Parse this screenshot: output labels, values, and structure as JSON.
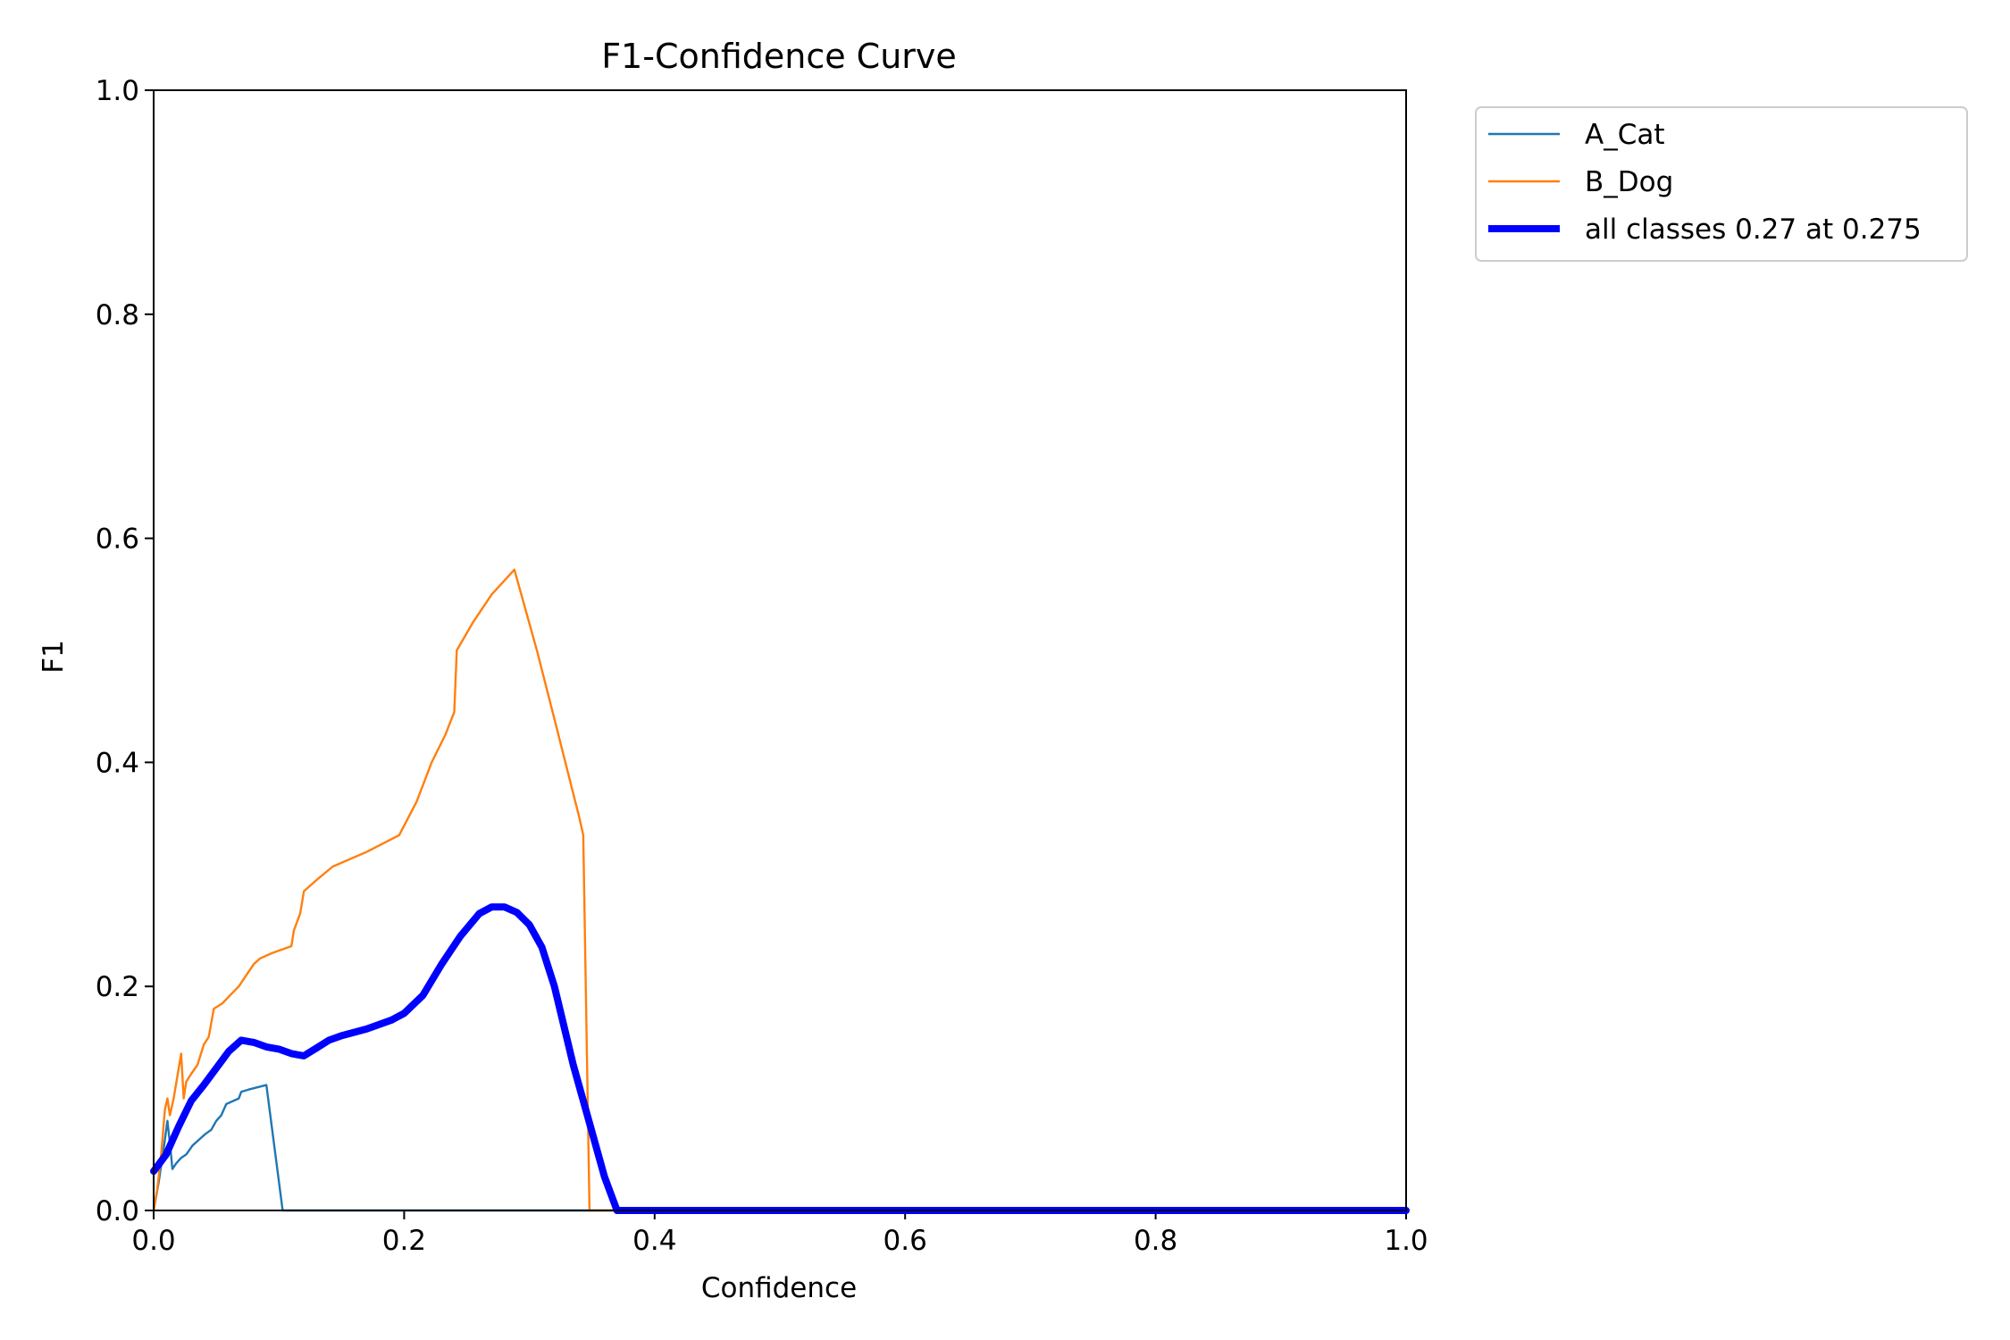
{
  "chart_data": {
    "type": "line",
    "title": "F1-Confidence Curve",
    "xlabel": "Confidence",
    "ylabel": "F1",
    "xlim": [
      0.0,
      1.0
    ],
    "ylim": [
      0.0,
      1.0
    ],
    "xticks": [
      "0.0",
      "0.2",
      "0.4",
      "0.6",
      "0.8",
      "1.0"
    ],
    "yticks": [
      "0.0",
      "0.2",
      "0.4",
      "0.6",
      "0.8",
      "1.0"
    ],
    "grid": false,
    "legend_position": "outside top-right",
    "series": [
      {
        "name": "A_Cat",
        "color": "#1f77b4",
        "style": "thin",
        "points": [
          [
            0.0,
            0.0
          ],
          [
            0.004,
            0.025
          ],
          [
            0.008,
            0.055
          ],
          [
            0.011,
            0.08
          ],
          [
            0.013,
            0.06
          ],
          [
            0.015,
            0.037
          ],
          [
            0.018,
            0.042
          ],
          [
            0.022,
            0.047
          ],
          [
            0.026,
            0.05
          ],
          [
            0.031,
            0.058
          ],
          [
            0.036,
            0.063
          ],
          [
            0.041,
            0.068
          ],
          [
            0.046,
            0.072
          ],
          [
            0.05,
            0.08
          ],
          [
            0.054,
            0.085
          ],
          [
            0.058,
            0.095
          ],
          [
            0.064,
            0.098
          ],
          [
            0.068,
            0.1
          ],
          [
            0.07,
            0.106
          ],
          [
            0.076,
            0.108
          ],
          [
            0.083,
            0.11
          ],
          [
            0.09,
            0.112
          ],
          [
            0.103,
            0.0
          ],
          [
            0.37,
            0.0
          ],
          [
            1.0,
            0.0
          ]
        ]
      },
      {
        "name": "B_Dog",
        "color": "#ff7f0e",
        "style": "thin",
        "points": [
          [
            0.0,
            0.0
          ],
          [
            0.003,
            0.02
          ],
          [
            0.006,
            0.05
          ],
          [
            0.009,
            0.09
          ],
          [
            0.011,
            0.1
          ],
          [
            0.013,
            0.085
          ],
          [
            0.016,
            0.1
          ],
          [
            0.019,
            0.12
          ],
          [
            0.022,
            0.14
          ],
          [
            0.024,
            0.1
          ],
          [
            0.026,
            0.115
          ],
          [
            0.03,
            0.122
          ],
          [
            0.035,
            0.13
          ],
          [
            0.04,
            0.148
          ],
          [
            0.044,
            0.155
          ],
          [
            0.048,
            0.18
          ],
          [
            0.055,
            0.185
          ],
          [
            0.061,
            0.192
          ],
          [
            0.068,
            0.2
          ],
          [
            0.074,
            0.21
          ],
          [
            0.08,
            0.22
          ],
          [
            0.085,
            0.225
          ],
          [
            0.095,
            0.23
          ],
          [
            0.11,
            0.236
          ],
          [
            0.112,
            0.25
          ],
          [
            0.117,
            0.265
          ],
          [
            0.12,
            0.285
          ],
          [
            0.13,
            0.295
          ],
          [
            0.143,
            0.307
          ],
          [
            0.17,
            0.32
          ],
          [
            0.196,
            0.335
          ],
          [
            0.21,
            0.365
          ],
          [
            0.222,
            0.4
          ],
          [
            0.233,
            0.425
          ],
          [
            0.24,
            0.445
          ],
          [
            0.242,
            0.5
          ],
          [
            0.255,
            0.525
          ],
          [
            0.27,
            0.55
          ],
          [
            0.288,
            0.572
          ],
          [
            0.306,
            0.5
          ],
          [
            0.322,
            0.43
          ],
          [
            0.34,
            0.35
          ],
          [
            0.343,
            0.335
          ],
          [
            0.348,
            0.0
          ],
          [
            0.37,
            0.0
          ],
          [
            1.0,
            0.0
          ]
        ]
      },
      {
        "name": "all classes 0.27 at 0.275",
        "color": "#0000ff",
        "style": "thick",
        "points": [
          [
            0.0,
            0.035
          ],
          [
            0.01,
            0.05
          ],
          [
            0.02,
            0.075
          ],
          [
            0.03,
            0.098
          ],
          [
            0.04,
            0.112
          ],
          [
            0.05,
            0.127
          ],
          [
            0.06,
            0.142
          ],
          [
            0.07,
            0.152
          ],
          [
            0.08,
            0.15
          ],
          [
            0.09,
            0.146
          ],
          [
            0.1,
            0.144
          ],
          [
            0.11,
            0.14
          ],
          [
            0.12,
            0.138
          ],
          [
            0.13,
            0.145
          ],
          [
            0.14,
            0.152
          ],
          [
            0.15,
            0.156
          ],
          [
            0.17,
            0.162
          ],
          [
            0.19,
            0.17
          ],
          [
            0.2,
            0.176
          ],
          [
            0.215,
            0.192
          ],
          [
            0.23,
            0.22
          ],
          [
            0.245,
            0.245
          ],
          [
            0.26,
            0.265
          ],
          [
            0.27,
            0.271
          ],
          [
            0.275,
            0.271
          ],
          [
            0.28,
            0.271
          ],
          [
            0.29,
            0.266
          ],
          [
            0.3,
            0.255
          ],
          [
            0.31,
            0.235
          ],
          [
            0.32,
            0.2
          ],
          [
            0.335,
            0.13
          ],
          [
            0.35,
            0.07
          ],
          [
            0.36,
            0.03
          ],
          [
            0.37,
            0.0
          ],
          [
            1.0,
            0.0
          ]
        ]
      }
    ]
  }
}
